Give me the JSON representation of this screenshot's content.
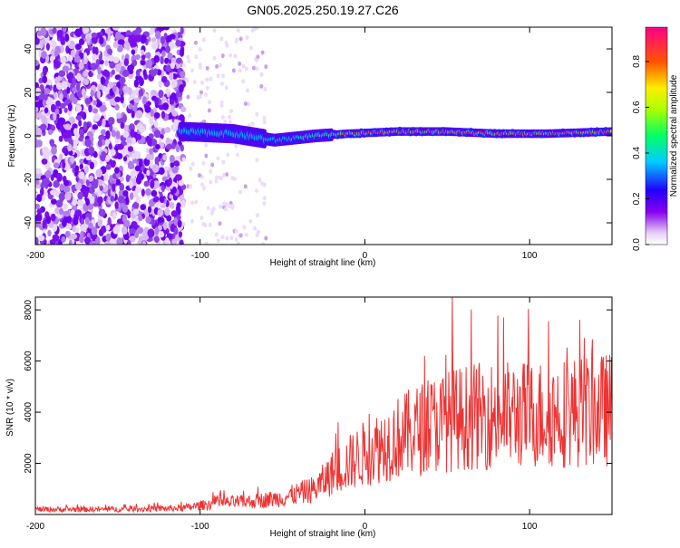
{
  "title": "GN05.2025.250.19.27.C26",
  "chart_data": [
    {
      "type": "heatmap",
      "title": "",
      "xlabel": "Height of straight line (km)",
      "ylabel": "Frequency (Hz)",
      "xlim": [
        -200,
        150
      ],
      "ylim": [
        -50,
        50
      ],
      "x_ticks": [
        "-200",
        "-100",
        "0",
        "100"
      ],
      "y_ticks": [
        "-40",
        "-20",
        "0",
        "20",
        "40"
      ],
      "colorbar": {
        "label": "Normalized spectral amplitude",
        "range": [
          0,
          0.95
        ],
        "ticks": [
          "0.0",
          "0.2",
          "0.4",
          "0.6",
          "0.8"
        ]
      },
      "description_points": {
        "noise_region_x": [
          -200,
          -110
        ],
        "sparse_region_x": [
          -110,
          -60
        ],
        "signal_band_center_hz": [
          {
            "x": -110,
            "y": 2
          },
          {
            "x": -80,
            "y": 1
          },
          {
            "x": -55,
            "y": -2
          },
          {
            "x": -30,
            "y": 0
          },
          {
            "x": -10,
            "y": 1
          },
          {
            "x": 20,
            "y": 2
          },
          {
            "x": 50,
            "y": 2
          },
          {
            "x": 80,
            "y": 1
          },
          {
            "x": 110,
            "y": 1
          },
          {
            "x": 150,
            "y": 2
          }
        ]
      }
    },
    {
      "type": "line",
      "title": "",
      "xlabel": "Height of straight line (km)",
      "ylabel": "SNR (10 * v/v)",
      "xlim": [
        -200,
        150
      ],
      "ylim": [
        0,
        8500
      ],
      "x_ticks": [
        "-200",
        "-100",
        "0",
        "100"
      ],
      "y_ticks": [
        "2000",
        "4000",
        "6000",
        "8000"
      ],
      "series_color": "#ee3333",
      "trend": [
        {
          "x": -200,
          "y": 200
        },
        {
          "x": -150,
          "y": 200
        },
        {
          "x": -110,
          "y": 250
        },
        {
          "x": -90,
          "y": 450
        },
        {
          "x": -70,
          "y": 500
        },
        {
          "x": -50,
          "y": 650
        },
        {
          "x": -30,
          "y": 1000
        },
        {
          "x": -20,
          "y": 1600
        },
        {
          "x": 0,
          "y": 2400
        },
        {
          "x": 20,
          "y": 3000
        },
        {
          "x": 40,
          "y": 3500
        },
        {
          "x": 60,
          "y": 3800
        },
        {
          "x": 80,
          "y": 3900
        },
        {
          "x": 100,
          "y": 3900
        },
        {
          "x": 120,
          "y": 4000
        },
        {
          "x": 150,
          "y": 4100
        }
      ],
      "peak": {
        "x": 53,
        "y": 8500
      }
    }
  ]
}
